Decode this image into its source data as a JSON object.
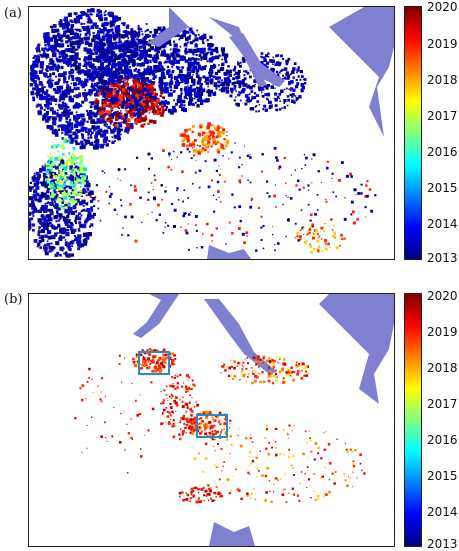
{
  "panels": [
    {
      "label": "(a)",
      "colorbar_ticks": [
        "2020",
        "2019",
        "2018",
        "2017",
        "2016",
        "2015",
        "2014",
        "2013"
      ]
    },
    {
      "label": "(b)",
      "colorbar_ticks": [
        "2020",
        "2019",
        "2018",
        "2017",
        "2016",
        "2015",
        "2014",
        "2013"
      ]
    }
  ],
  "colors": {
    "water": "#8080d0",
    "highlight_box": "#1e8fc8",
    "colormap": [
      "#000080",
      "#0000ff",
      "#0080ff",
      "#00ffff",
      "#80ff80",
      "#ffff00",
      "#ff8000",
      "#ff0000",
      "#800000"
    ]
  }
}
